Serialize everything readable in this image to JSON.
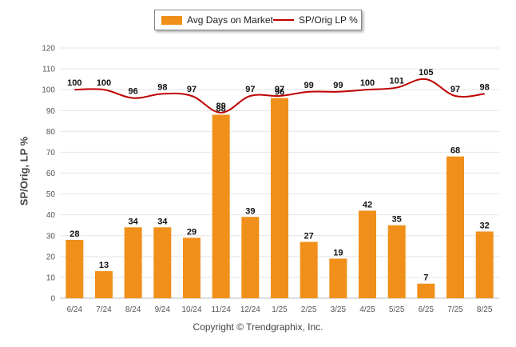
{
  "legend": {
    "bar_label": "Avg Days on Market",
    "line_label": "SP/Orig LP %"
  },
  "copyright": "Copyright © Trendgraphix, Inc.",
  "chart_data": {
    "type": "bar",
    "categories": [
      "6/24",
      "7/24",
      "8/24",
      "9/24",
      "10/24",
      "11/24",
      "12/24",
      "1/25",
      "2/25",
      "3/25",
      "4/25",
      "5/25",
      "6/25",
      "7/25",
      "8/25"
    ],
    "series": [
      {
        "name": "Avg Days on Market",
        "type": "bar",
        "color": "#f0901a",
        "values": [
          28,
          13,
          34,
          34,
          29,
          88,
          39,
          96,
          27,
          19,
          42,
          35,
          7,
          68,
          32
        ]
      },
      {
        "name": "SP/Orig LP %",
        "type": "line",
        "color": "#c00000",
        "values": [
          100,
          100,
          96,
          98,
          97,
          89,
          97,
          97,
          99,
          99,
          100,
          101,
          105,
          97,
          98
        ]
      }
    ],
    "ylabel": "SP/Orig, LP %",
    "ylim": [
      0,
      120
    ],
    "yticks": [
      0,
      10,
      20,
      30,
      40,
      50,
      60,
      70,
      80,
      90,
      100,
      110,
      120
    ],
    "grid": true,
    "legend_position": "top-center"
  }
}
